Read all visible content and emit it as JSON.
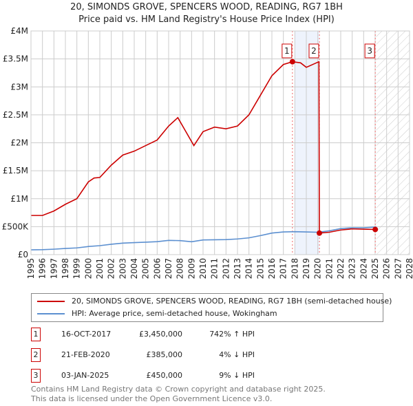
{
  "title": "20, SIMONDS GROVE, SPENCERS WOOD, READING, RG7 1BH",
  "subtitle": "Price paid vs. HM Land Registry's House Price Index (HPI)",
  "colors": {
    "property": "#cc0000",
    "hpi": "#5b8fd0"
  },
  "chart_data": {
    "type": "line",
    "ylim": [
      0,
      4000000
    ],
    "xlim": [
      1995,
      2028
    ],
    "yticks": [
      {
        "v": 0,
        "l": "£0"
      },
      {
        "v": 500000,
        "l": "£500K"
      },
      {
        "v": 1000000,
        "l": "£1M"
      },
      {
        "v": 1500000,
        "l": "£1.5M"
      },
      {
        "v": 2000000,
        "l": "£2M"
      },
      {
        "v": 2500000,
        "l": "£2.5M"
      },
      {
        "v": 3000000,
        "l": "£3M"
      },
      {
        "v": 3500000,
        "l": "£3.5M"
      },
      {
        "v": 4000000,
        "l": "£4M"
      }
    ],
    "xticks": [
      "1995",
      "1996",
      "1997",
      "1998",
      "1999",
      "2000",
      "2001",
      "2002",
      "2003",
      "2004",
      "2005",
      "2006",
      "2007",
      "2008",
      "2009",
      "2010",
      "2011",
      "2012",
      "2013",
      "2014",
      "2015",
      "2016",
      "2017",
      "2018",
      "2019",
      "2020",
      "2021",
      "2022",
      "2023",
      "2024",
      "2025",
      "2026",
      "2027",
      "2028"
    ],
    "shaded_range": [
      2018,
      2020.14
    ],
    "forecast_from": 2025.1,
    "series": [
      {
        "name": "20, SIMONDS GROVE, SPENCERS WOOD, READING, RG7 1BH (semi-detached house)",
        "x": [
          1995,
          1996,
          1997,
          1998,
          1999,
          2000,
          2000.5,
          2001,
          2002,
          2003,
          2004,
          2005,
          2006,
          2007,
          2007.8,
          2008.5,
          2009.2,
          2010,
          2011,
          2012,
          2013,
          2014,
          2015,
          2016,
          2017,
          2017.79,
          2018.5,
          2019,
          2020.1,
          2020.14,
          2021,
          2022,
          2023,
          2024,
          2025.01,
          2025.1
        ],
        "y": [
          700000,
          700000,
          780000,
          900000,
          1000000,
          1300000,
          1370000,
          1380000,
          1600000,
          1780000,
          1850000,
          1950000,
          2050000,
          2300000,
          2450000,
          2200000,
          1950000,
          2200000,
          2280000,
          2250000,
          2300000,
          2500000,
          2850000,
          3200000,
          3400000,
          3450000,
          3430000,
          3350000,
          3450000,
          385000,
          400000,
          440000,
          460000,
          455000,
          450000,
          460000
        ]
      },
      {
        "name": "HPI: Average price, semi-detached house, Wokingham",
        "x": [
          1995,
          1996,
          1997,
          1998,
          1999,
          2000,
          2001,
          2002,
          2003,
          2004,
          2005,
          2006,
          2007,
          2008,
          2009,
          2010,
          2011,
          2012,
          2013,
          2014,
          2015,
          2016,
          2017,
          2018,
          2019,
          2020,
          2021,
          2022,
          2023,
          2024,
          2025.1
        ],
        "y": [
          85000,
          88000,
          97000,
          110000,
          120000,
          145000,
          160000,
          185000,
          205000,
          215000,
          222000,
          232000,
          255000,
          250000,
          230000,
          262000,
          265000,
          268000,
          280000,
          300000,
          340000,
          385000,
          405000,
          410000,
          405000,
          400000,
          425000,
          465000,
          480000,
          480000,
          495000
        ]
      }
    ],
    "sales": [
      {
        "n": "1",
        "x": 2017.79,
        "y": 3450000
      },
      {
        "n": "2",
        "x": 2020.14,
        "y": 385000
      },
      {
        "n": "3",
        "x": 2025.01,
        "y": 450000
      }
    ]
  },
  "legend": [
    "20, SIMONDS GROVE, SPENCERS WOOD, READING, RG7 1BH (semi-detached house)",
    "HPI: Average price, semi-detached house, Wokingham"
  ],
  "transactions": [
    {
      "n": "1",
      "date": "16-OCT-2017",
      "price": "£3,450,000",
      "hpi": "742% ↑ HPI"
    },
    {
      "n": "2",
      "date": "21-FEB-2020",
      "price": "£385,000",
      "hpi": "4% ↓ HPI"
    },
    {
      "n": "3",
      "date": "03-JAN-2025",
      "price": "£450,000",
      "hpi": "9% ↓ HPI"
    }
  ],
  "footer": [
    "Contains HM Land Registry data © Crown copyright and database right 2025.",
    "This data is licensed under the Open Government Licence v3.0."
  ]
}
